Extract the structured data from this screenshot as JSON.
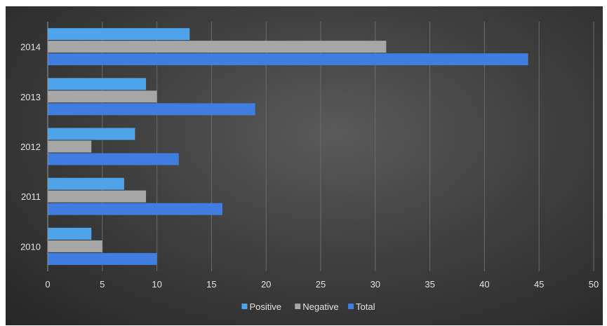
{
  "chart_data": {
    "type": "bar",
    "orientation": "horizontal",
    "categories": [
      "2010",
      "2011",
      "2012",
      "2013",
      "2014"
    ],
    "series": [
      {
        "name": "Positive",
        "values": [
          4,
          7,
          8,
          9,
          13
        ],
        "color": "#4ea3ea"
      },
      {
        "name": "Negative",
        "values": [
          5,
          9,
          4,
          10,
          31
        ],
        "color": "#a6a6a6"
      },
      {
        "name": "Total",
        "values": [
          10,
          16,
          12,
          19,
          44
        ],
        "color": "#3f7ee0"
      }
    ],
    "xlim": [
      0,
      50
    ],
    "xticks": [
      0,
      5,
      10,
      15,
      20,
      25,
      30,
      35,
      40,
      45,
      50
    ],
    "title": "",
    "xlabel": "",
    "ylabel": "",
    "grid": "vertical",
    "legend_position": "bottom",
    "background": "dark-gradient"
  }
}
